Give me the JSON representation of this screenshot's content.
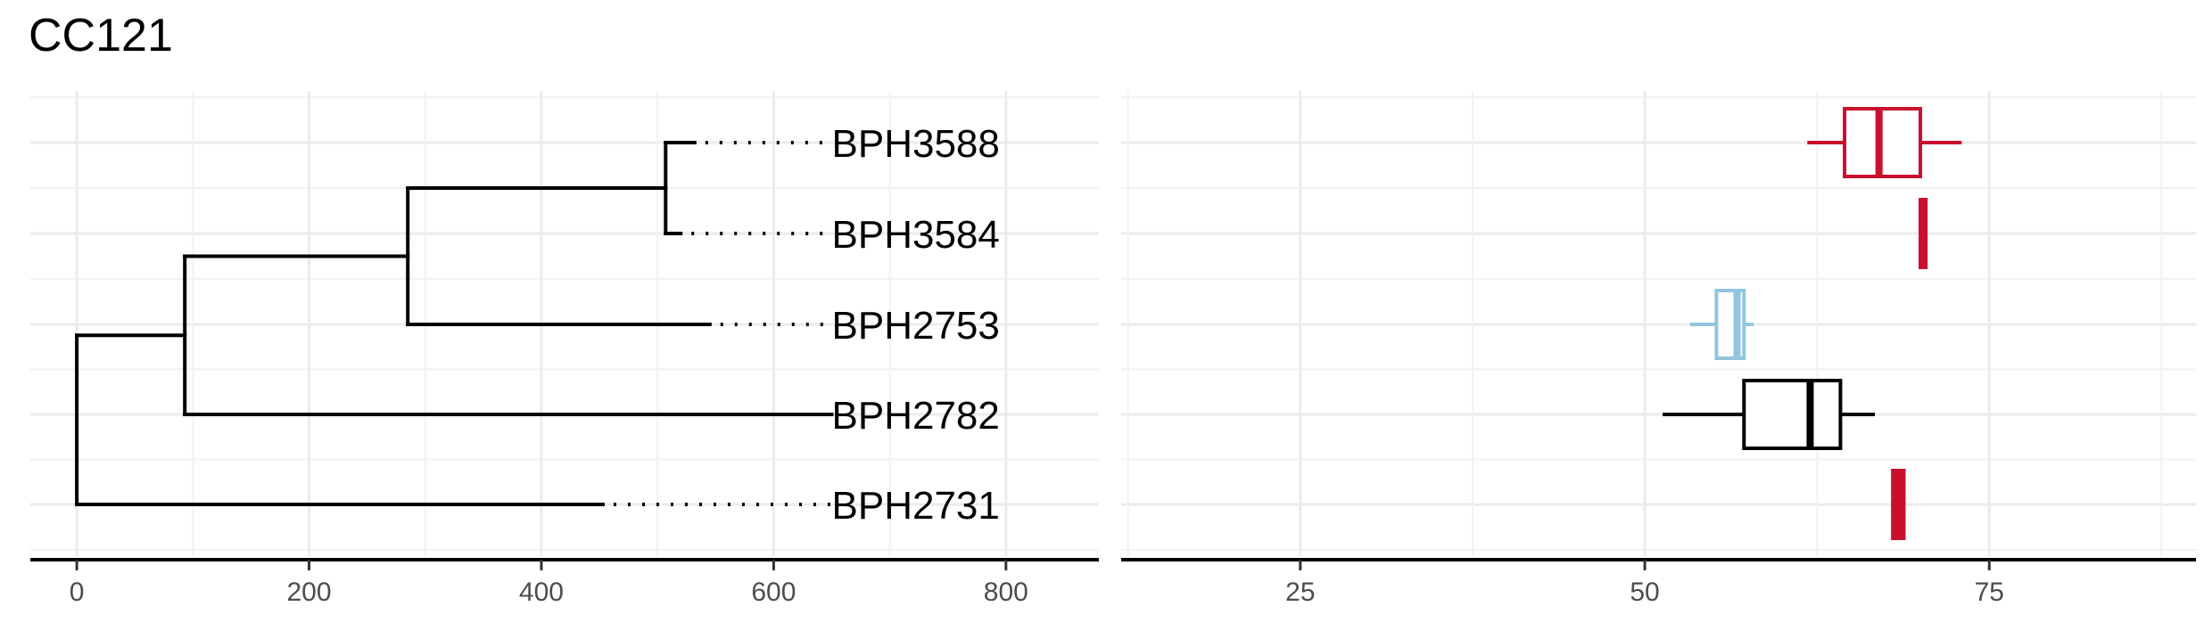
{
  "title": "CC121",
  "chart_data": [
    {
      "type": "dendrogram",
      "title": "",
      "xlabel": "",
      "ylabel": "",
      "xlim": [
        -40,
        880
      ],
      "x_ticks": [
        0,
        200,
        400,
        600,
        800
      ],
      "grid": true,
      "tips": [
        {
          "label": "BPH3588",
          "branch_end": 532
        },
        {
          "label": "BPH3584",
          "branch_end": 520
        },
        {
          "label": "BPH2753",
          "branch_end": 545
        },
        {
          "label": "BPH2782",
          "branch_end": 650
        },
        {
          "label": "BPH2731",
          "branch_end": 453
        }
      ],
      "label_x": 650,
      "internal_nodes": [
        {
          "x": 0,
          "children": [
            "BPH2731",
            "n2"
          ],
          "id": "n1"
        },
        {
          "x": 93,
          "children": [
            "BPH2782",
            "n3"
          ],
          "id": "n2"
        },
        {
          "x": 285,
          "children": [
            "BPH2753",
            "n4"
          ],
          "id": "n3"
        },
        {
          "x": 507,
          "children": [
            "BPH3588",
            "BPH3584"
          ],
          "id": "n4"
        }
      ]
    },
    {
      "type": "boxplot",
      "title": "",
      "xlabel": "",
      "ylabel": "",
      "xlim": [
        12,
        90
      ],
      "x_ticks": [
        25,
        50,
        75
      ],
      "grid": true,
      "categories": [
        "BPH3588",
        "BPH3584",
        "BPH2753",
        "BPH2782",
        "BPH2731"
      ],
      "boxes": [
        {
          "name": "BPH3588",
          "color": "#c8102e",
          "whisker_low": 61.8,
          "q1": 64.5,
          "median": 67.0,
          "q3": 70.0,
          "whisker_high": 73.0
        },
        {
          "name": "BPH3584",
          "color": "#c8102e",
          "whisker_low": 70.0,
          "q1": 70.0,
          "median": 70.2,
          "q3": 70.4,
          "whisker_high": 70.4
        },
        {
          "name": "BPH2753",
          "color": "#92c5de",
          "whisker_low": 53.3,
          "q1": 55.2,
          "median": 56.7,
          "q3": 57.2,
          "whisker_high": 57.9
        },
        {
          "name": "BPH2782",
          "color": "#000000",
          "whisker_low": 51.3,
          "q1": 57.2,
          "median": 62.0,
          "q3": 64.2,
          "whisker_high": 66.7
        },
        {
          "name": "BPH2731",
          "color": "#c8102e",
          "whisker_low": 68.0,
          "q1": 68.0,
          "median": 68.3,
          "q3": 68.8,
          "whisker_high": 68.8
        }
      ]
    }
  ]
}
